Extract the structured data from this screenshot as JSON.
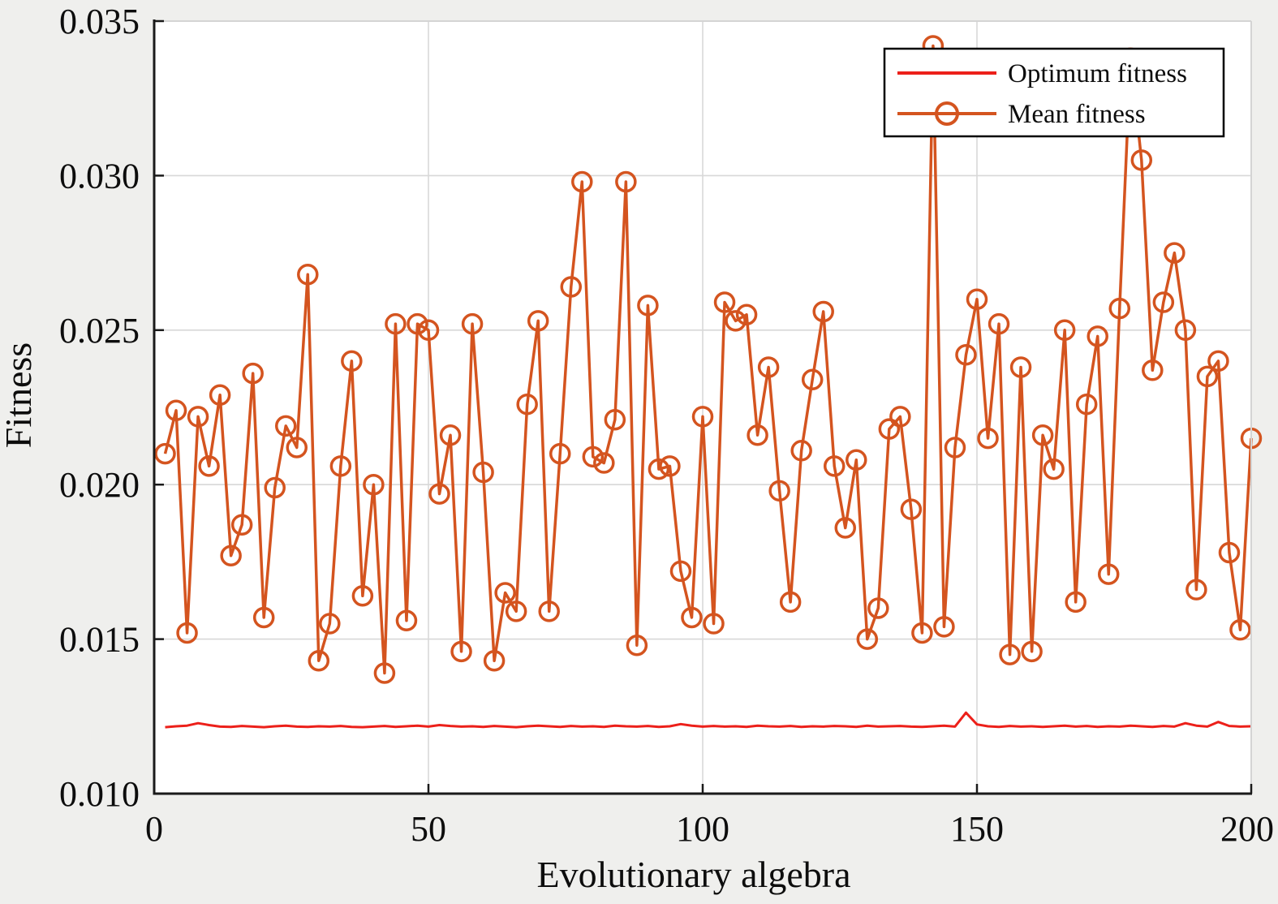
{
  "figure": {
    "background": "#efefed",
    "plot_background": "#ffffff",
    "grid_color": "#d8d8d8",
    "frame_light_color": "#d4d4d4",
    "axis_color": "#1a1a1a",
    "optimum_color": "#ec201a",
    "mean_color": "#d4541f"
  },
  "axes": {
    "x": {
      "label": "Evolutionary algebra",
      "min": 0,
      "max": 200,
      "ticks": [
        "0",
        "50",
        "100",
        "150",
        "200"
      ]
    },
    "y": {
      "label": "Fitness",
      "min": 0.01,
      "max": 0.035,
      "ticks": [
        "0.010",
        "0.015",
        "0.020",
        "0.025",
        "0.030",
        "0.035"
      ]
    }
  },
  "legend": {
    "entries": [
      {
        "label": "Optimum fitness",
        "color": "#ec201a",
        "marker": "none"
      },
      {
        "label": "Mean fitness",
        "color": "#d4541f",
        "marker": "circle"
      }
    ]
  },
  "chart_data": {
    "type": "line",
    "title": "",
    "xlabel": "Evolutionary algebra",
    "ylabel": "Fitness",
    "xlim": [
      0,
      200
    ],
    "ylim": [
      0.01,
      0.035
    ],
    "grid": true,
    "legend_position": "upper right",
    "x": [
      2,
      4,
      6,
      8,
      10,
      12,
      14,
      16,
      18,
      20,
      22,
      24,
      26,
      28,
      30,
      32,
      34,
      36,
      38,
      40,
      42,
      44,
      46,
      48,
      50,
      52,
      54,
      56,
      58,
      60,
      62,
      64,
      66,
      68,
      70,
      72,
      74,
      76,
      78,
      80,
      82,
      84,
      86,
      88,
      90,
      92,
      94,
      96,
      98,
      100,
      102,
      104,
      106,
      108,
      110,
      112,
      114,
      116,
      118,
      120,
      122,
      124,
      126,
      128,
      130,
      132,
      134,
      136,
      138,
      140,
      142,
      144,
      146,
      148,
      150,
      152,
      154,
      156,
      158,
      160,
      162,
      164,
      166,
      168,
      170,
      172,
      174,
      176,
      178,
      180,
      182,
      184,
      186,
      188,
      190,
      192,
      194,
      196,
      198,
      200
    ],
    "series": [
      {
        "name": "Optimum fitness",
        "color": "#ec201a",
        "marker": "none",
        "values": [
          0.01215,
          0.01218,
          0.0122,
          0.01228,
          0.01222,
          0.01217,
          0.01216,
          0.01219,
          0.01217,
          0.01215,
          0.01218,
          0.0122,
          0.01217,
          0.01216,
          0.01218,
          0.01217,
          0.01219,
          0.01216,
          0.01215,
          0.01217,
          0.01219,
          0.01216,
          0.01218,
          0.0122,
          0.01217,
          0.01222,
          0.01219,
          0.01217,
          0.01218,
          0.01216,
          0.01219,
          0.01217,
          0.01215,
          0.01218,
          0.0122,
          0.01218,
          0.01216,
          0.01219,
          0.01217,
          0.01218,
          0.01216,
          0.0122,
          0.01218,
          0.01217,
          0.01219,
          0.01216,
          0.01218,
          0.01225,
          0.0122,
          0.01217,
          0.01219,
          0.01217,
          0.01218,
          0.01216,
          0.0122,
          0.01218,
          0.01217,
          0.01219,
          0.01216,
          0.01218,
          0.01217,
          0.01219,
          0.01218,
          0.01216,
          0.0122,
          0.01217,
          0.01218,
          0.01219,
          0.01217,
          0.01216,
          0.01218,
          0.0122,
          0.01217,
          0.01262,
          0.01224,
          0.01218,
          0.01216,
          0.01219,
          0.01217,
          0.01218,
          0.01216,
          0.01218,
          0.0122,
          0.01217,
          0.01219,
          0.01216,
          0.01218,
          0.01217,
          0.0122,
          0.01218,
          0.01216,
          0.01219,
          0.01217,
          0.01228,
          0.0122,
          0.01217,
          0.01232,
          0.01219,
          0.01217,
          0.01218
        ]
      },
      {
        "name": "Mean fitness",
        "color": "#d4541f",
        "marker": "circle",
        "values": [
          0.021,
          0.0224,
          0.0152,
          0.0222,
          0.0206,
          0.0229,
          0.0177,
          0.0187,
          0.0236,
          0.0157,
          0.0199,
          0.0219,
          0.0212,
          0.0268,
          0.0143,
          0.0155,
          0.0206,
          0.024,
          0.0164,
          0.02,
          0.0139,
          0.0252,
          0.0156,
          0.0252,
          0.025,
          0.0197,
          0.0216,
          0.0146,
          0.0252,
          0.0204,
          0.0143,
          0.0165,
          0.0159,
          0.0226,
          0.0253,
          0.0159,
          0.021,
          0.0264,
          0.0298,
          0.0209,
          0.0207,
          0.0221,
          0.0298,
          0.0148,
          0.0258,
          0.0205,
          0.0206,
          0.0172,
          0.0157,
          0.0222,
          0.0155,
          0.0259,
          0.0253,
          0.0255,
          0.0216,
          0.0238,
          0.0198,
          0.0162,
          0.0211,
          0.0234,
          0.0256,
          0.0206,
          0.0186,
          0.0208,
          0.015,
          0.016,
          0.0218,
          0.0222,
          0.0192,
          0.0152,
          0.0342,
          0.0154,
          0.0212,
          0.0242,
          0.026,
          0.0215,
          0.0252,
          0.0145,
          0.0238,
          0.0146,
          0.0216,
          0.0205,
          0.025,
          0.0162,
          0.0226,
          0.0248,
          0.0171,
          0.0257,
          0.0338,
          0.0305,
          0.0237,
          0.0259,
          0.0275,
          0.025,
          0.0166,
          0.0235,
          0.024,
          0.0178,
          0.0153,
          0.0215
        ]
      }
    ]
  }
}
